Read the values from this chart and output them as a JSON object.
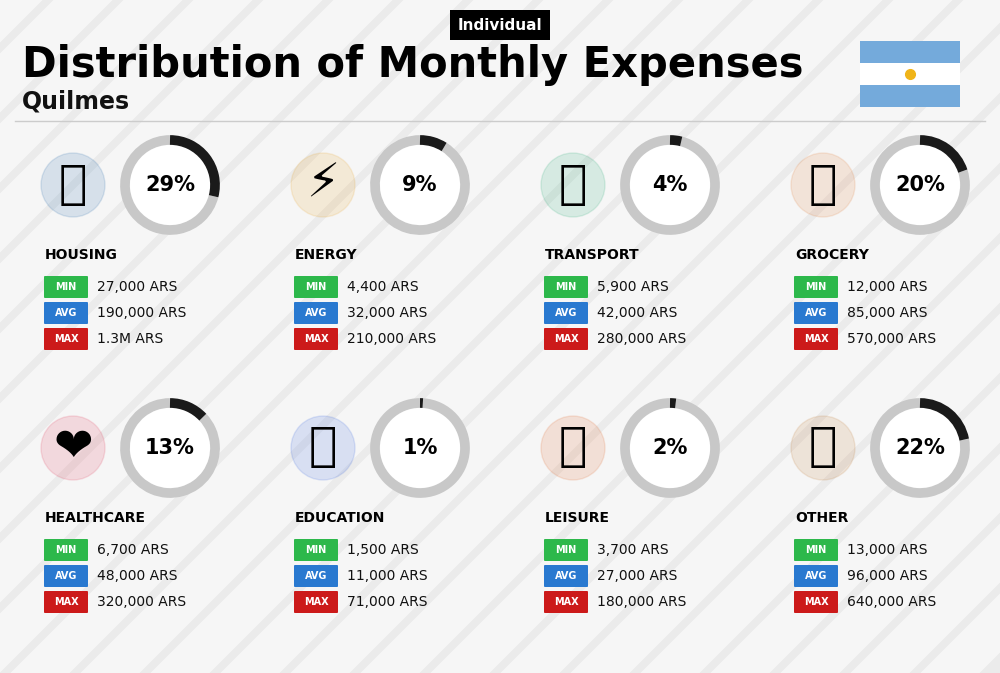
{
  "title": "Distribution of Monthly Expenses",
  "subtitle": "Individual",
  "city": "Quilmes",
  "bg_color": "#ebebeb",
  "stripe_color": "#ffffff",
  "categories": [
    {
      "name": "HOUSING",
      "pct": 29,
      "min": "27,000 ARS",
      "avg": "190,000 ARS",
      "max": "1.3M ARS",
      "col": 0,
      "row": 0
    },
    {
      "name": "ENERGY",
      "pct": 9,
      "min": "4,400 ARS",
      "avg": "32,000 ARS",
      "max": "210,000 ARS",
      "col": 1,
      "row": 0
    },
    {
      "name": "TRANSPORT",
      "pct": 4,
      "min": "5,900 ARS",
      "avg": "42,000 ARS",
      "max": "280,000 ARS",
      "col": 2,
      "row": 0
    },
    {
      "name": "GROCERY",
      "pct": 20,
      "min": "12,000 ARS",
      "avg": "85,000 ARS",
      "max": "570,000 ARS",
      "col": 3,
      "row": 0
    },
    {
      "name": "HEALTHCARE",
      "pct": 13,
      "min": "6,700 ARS",
      "avg": "48,000 ARS",
      "max": "320,000 ARS",
      "col": 0,
      "row": 1
    },
    {
      "name": "EDUCATION",
      "pct": 1,
      "min": "1,500 ARS",
      "avg": "11,000 ARS",
      "max": "71,000 ARS",
      "col": 1,
      "row": 1
    },
    {
      "name": "LEISURE",
      "pct": 2,
      "min": "3,700 ARS",
      "avg": "27,000 ARS",
      "max": "180,000 ARS",
      "col": 2,
      "row": 1
    },
    {
      "name": "OTHER",
      "pct": 22,
      "min": "13,000 ARS",
      "avg": "96,000 ARS",
      "max": "640,000 ARS",
      "col": 3,
      "row": 1
    }
  ],
  "min_color": "#2db84b",
  "avg_color": "#2979d0",
  "max_color": "#cc1a1a",
  "arc_dark": "#1a1a1a",
  "arc_light": "#c8c8c8",
  "arc_lw": 7,
  "arc_r": 45,
  "flag_blue": "#74aadb",
  "flag_yellow": "#f0b418",
  "title_fontsize": 30,
  "subtitle_fontsize": 11,
  "city_fontsize": 17,
  "cat_fontsize": 10,
  "badge_fontsize": 7,
  "val_fontsize": 10,
  "pct_fontsize": 15
}
